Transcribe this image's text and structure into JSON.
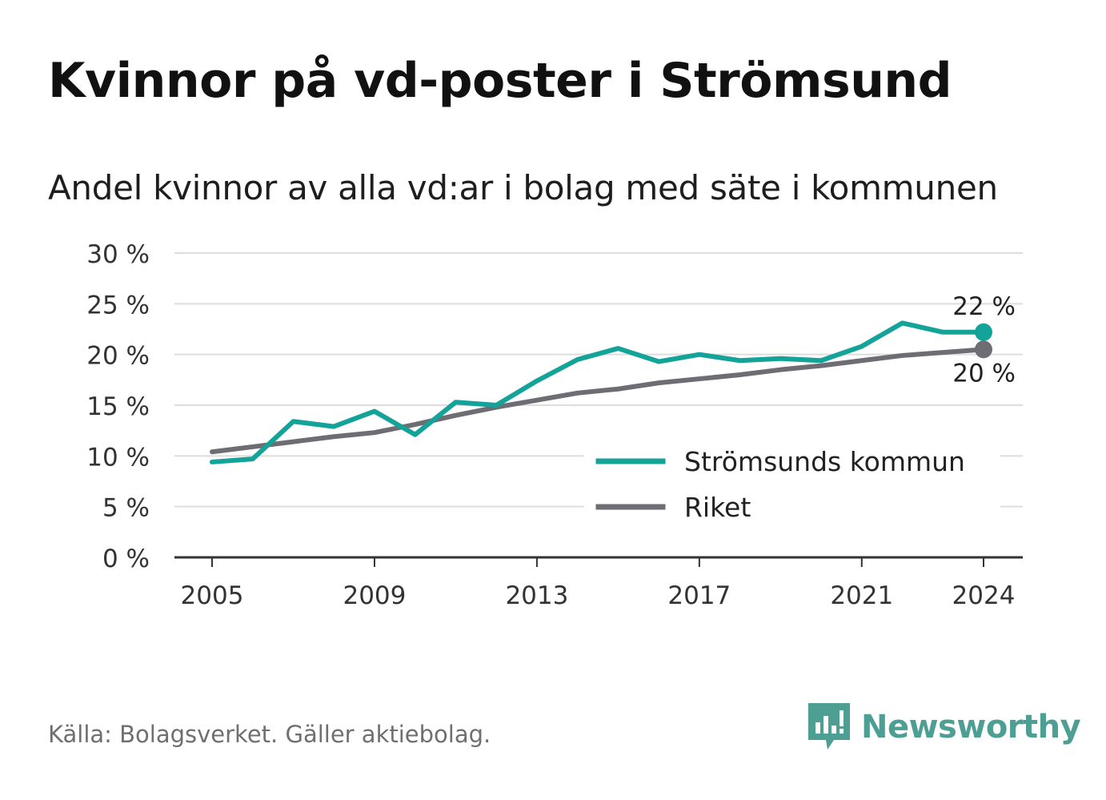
{
  "header": {
    "title": "Kvinnor på vd-poster i Strömsund",
    "subtitle": "Andel kvinnor av alla vd:ar i bolag med säte i kommunen"
  },
  "footer": {
    "source": "Källa: Bolagsverket. Gäller aktiebolag.",
    "brand": "Newsworthy"
  },
  "colors": {
    "local": "#14a399",
    "national": "#6e6d74",
    "grid": "#dddddd",
    "axis": "#333333",
    "brand": "#4d9e93"
  },
  "chart_data": {
    "type": "line",
    "title": "Kvinnor på vd-poster i Strömsund",
    "subtitle": "Andel kvinnor av alla vd:ar i bolag med säte i kommunen",
    "xlabel": "",
    "ylabel": "",
    "x": [
      2005,
      2006,
      2007,
      2008,
      2009,
      2010,
      2011,
      2012,
      2013,
      2014,
      2015,
      2016,
      2017,
      2018,
      2019,
      2020,
      2021,
      2022,
      2023,
      2024
    ],
    "xticks": [
      2005,
      2009,
      2013,
      2017,
      2021,
      2024
    ],
    "xtick_labels": [
      "2005",
      "2009",
      "2013",
      "2017",
      "2021",
      "2024"
    ],
    "ylim": [
      0,
      30
    ],
    "yticks": [
      0,
      5,
      10,
      15,
      20,
      25,
      30
    ],
    "ytick_labels": [
      "0 %",
      "5 %",
      "10 %",
      "15 %",
      "20 %",
      "25 %",
      "30 %"
    ],
    "grid": true,
    "legend_position": "bottom-right",
    "series": [
      {
        "name": "Strömsunds kommun",
        "color": "#14a399",
        "values": [
          9.4,
          9.7,
          13.4,
          12.9,
          14.4,
          12.1,
          15.3,
          15.0,
          17.4,
          19.5,
          20.6,
          19.3,
          20.0,
          19.4,
          19.6,
          19.4,
          20.8,
          23.1,
          22.2,
          22.2
        ],
        "end_label": "22 %"
      },
      {
        "name": "Riket",
        "color": "#6e6d74",
        "values": [
          10.4,
          10.9,
          11.4,
          11.9,
          12.3,
          13.1,
          14.0,
          14.8,
          15.5,
          16.2,
          16.6,
          17.2,
          17.6,
          18.0,
          18.5,
          18.9,
          19.4,
          19.9,
          20.2,
          20.5
        ],
        "end_label": "20 %"
      }
    ]
  }
}
